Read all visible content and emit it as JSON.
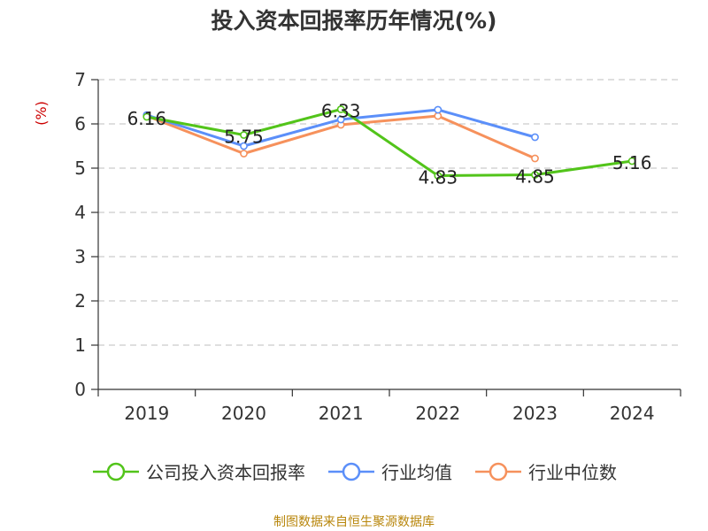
{
  "chart_data": {
    "type": "line",
    "title": "投入资本回报率历年情况(%)",
    "ylabel": "(%)",
    "categories": [
      "2019",
      "2020",
      "2021",
      "2022",
      "2023",
      "2024"
    ],
    "ylim": [
      0,
      7
    ],
    "yticks": [
      0,
      1,
      2,
      3,
      4,
      5,
      6,
      7
    ],
    "grid": true,
    "legend_position": "bottom",
    "series": [
      {
        "name": "公司投入资本回报率",
        "color": "#52c41a",
        "values": [
          6.16,
          5.75,
          6.33,
          4.83,
          4.85,
          5.16
        ],
        "data_labels": [
          "6.16",
          "5.75",
          "6.33",
          "4.83",
          "4.85",
          "5.16"
        ]
      },
      {
        "name": "行业均值",
        "color": "#5b8ff9",
        "values": [
          6.2,
          5.5,
          6.1,
          6.32,
          5.7,
          null
        ]
      },
      {
        "name": "行业中位数",
        "color": "#f6915c",
        "values": [
          6.18,
          5.33,
          5.98,
          6.18,
          5.22,
          null
        ]
      }
    ]
  },
  "source": "制图数据来自恒生聚源数据库"
}
